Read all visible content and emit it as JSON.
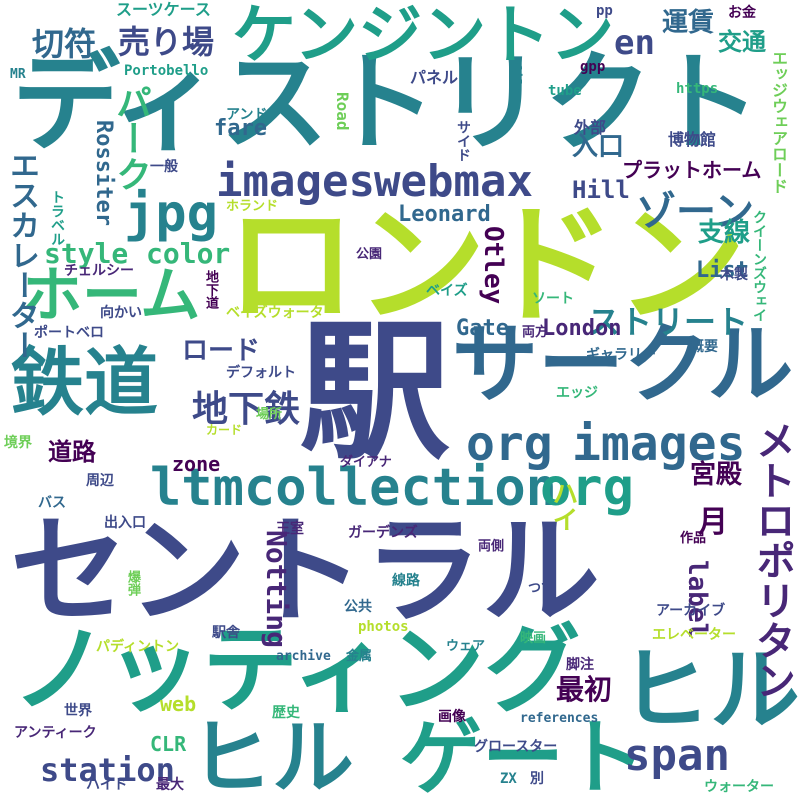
{
  "palette": [
    "#440154",
    "#482777",
    "#3e4a89",
    "#31688e",
    "#26828e",
    "#1f9e89",
    "#35b779",
    "#6ece58",
    "#b5de2b",
    "#fde725"
  ],
  "words": [
    {
      "text": "駅",
      "color": "#3e4a89"
    },
    {
      "text": "ディストリクト",
      "color": "#26828e"
    },
    {
      "text": "ロンドン",
      "color": "#b5de2b"
    },
    {
      "text": "セントラル",
      "color": "#3e4a89"
    },
    {
      "text": "ノッティング",
      "color": "#1f9e89"
    },
    {
      "text": "ヒル",
      "color": "#26828e"
    },
    {
      "text": "ヒル",
      "color": "#26828e"
    },
    {
      "text": "ゲート",
      "color": "#1f9e89"
    },
    {
      "text": "サークル",
      "color": "#31688e"
    },
    {
      "text": "鉄道",
      "color": "#26828e"
    },
    {
      "text": "ケンジントン",
      "color": "#1f9e89"
    },
    {
      "text": "ltmcollection",
      "color": "#26828e"
    },
    {
      "text": "org",
      "color": "#1f9e89"
    },
    {
      "text": "org",
      "color": "#31688e"
    },
    {
      "text": "images",
      "color": "#31688e"
    },
    {
      "text": "images",
      "color": "#3e4a89"
    },
    {
      "text": "webmax",
      "color": "#3e4a89"
    },
    {
      "text": "jpg",
      "color": "#26828e"
    },
    {
      "text": "ホーム",
      "color": "#35b779"
    },
    {
      "text": "span",
      "color": "#3e4a89"
    },
    {
      "text": "station",
      "color": "#3e4a89"
    },
    {
      "text": "地下鉄",
      "color": "#3e4a89"
    },
    {
      "text": "style",
      "color": "#35b779"
    },
    {
      "text": "color",
      "color": "#35b779"
    },
    {
      "text": "ストリート",
      "color": "#26828e"
    },
    {
      "text": "ゾーン",
      "color": "#31688e"
    },
    {
      "text": "メトロポリタン",
      "color": "#482777"
    },
    {
      "text": "パーク",
      "color": "#35b779"
    },
    {
      "text": "エスカレーター",
      "color": "#31688e"
    },
    {
      "text": "Notting",
      "color": "#482777"
    },
    {
      "text": "切符",
      "color": "#31688e"
    },
    {
      "text": "売り場",
      "color": "#3e4a89"
    },
    {
      "text": "en",
      "color": "#3e4a89"
    },
    {
      "text": "運賃",
      "color": "#31688e"
    },
    {
      "text": "交通",
      "color": "#1f9e89"
    },
    {
      "text": "宮殿",
      "color": "#440154"
    },
    {
      "text": "月",
      "color": "#440154"
    },
    {
      "text": "ロード",
      "color": "#3e4a89"
    },
    {
      "text": "最初",
      "color": "#440154"
    },
    {
      "text": "道路",
      "color": "#440154"
    },
    {
      "text": "入口",
      "color": "#31688e"
    },
    {
      "text": "支線",
      "color": "#1f9e89"
    },
    {
      "text": "Rossiter",
      "color": "#31688e"
    },
    {
      "text": "Leonard",
      "color": "#31688e"
    },
    {
      "text": "Hill",
      "color": "#3e4a89"
    },
    {
      "text": "Otley",
      "color": "#440154"
    },
    {
      "text": "List",
      "color": "#31688e"
    },
    {
      "text": "London",
      "color": "#482777"
    },
    {
      "text": "Gate",
      "color": "#31688e"
    },
    {
      "text": "label",
      "color": "#482777"
    },
    {
      "text": "CLR",
      "color": "#35b779"
    },
    {
      "text": "web",
      "color": "#b5de2b"
    },
    {
      "text": "zone",
      "color": "#440154"
    },
    {
      "text": "fare",
      "color": "#31688e"
    },
    {
      "text": "ハイ",
      "color": "#b5de2b"
    },
    {
      "text": "プラットホーム",
      "color": "#440154"
    },
    {
      "text": "スーツケース",
      "color": "#1f9e89"
    },
    {
      "text": "Portobello",
      "color": "#1f9e89"
    },
    {
      "text": "Road",
      "color": "#6ece58"
    },
    {
      "text": "film",
      "color": "#26828e"
    },
    {
      "text": "tube",
      "color": "#1f9e89"
    },
    {
      "text": "gpp",
      "color": "#440154"
    },
    {
      "text": "pp",
      "color": "#3e4a89"
    },
    {
      "text": "https",
      "color": "#35b779"
    },
    {
      "text": "お金",
      "color": "#440154"
    },
    {
      "text": "MR",
      "color": "#26828e"
    },
    {
      "text": "パネル",
      "color": "#3e4a89"
    },
    {
      "text": "アンド",
      "color": "#26828e"
    },
    {
      "text": "外部",
      "color": "#3e4a89"
    },
    {
      "text": "博物館",
      "color": "#3e4a89"
    },
    {
      "text": "サイド",
      "color": "#3e4a89"
    },
    {
      "text": "エッジウェアロード",
      "color": "#6ece58"
    },
    {
      "text": "一般",
      "color": "#3e4a89"
    },
    {
      "text": "トラベル",
      "color": "#1f9e89"
    },
    {
      "text": "ホランド",
      "color": "#b5de2b"
    },
    {
      "text": "クイーンズウェイ",
      "color": "#35b779"
    },
    {
      "text": "公園",
      "color": "#482777"
    },
    {
      "text": "チェルシー",
      "color": "#482777"
    },
    {
      "text": "木製",
      "color": "#3e4a89"
    },
    {
      "text": "地下道",
      "color": "#440154"
    },
    {
      "text": "ベイズ",
      "color": "#1f9e89"
    },
    {
      "text": "ソート",
      "color": "#35b779"
    },
    {
      "text": "ベイズウォーター",
      "color": "#b5de2b"
    },
    {
      "text": "向かい",
      "color": "#3e4a89"
    },
    {
      "text": "ポートベロ",
      "color": "#3e4a89"
    },
    {
      "text": "両方",
      "color": "#482777"
    },
    {
      "text": "ギャラリー",
      "color": "#31688e"
    },
    {
      "text": "概要",
      "color": "#31688e"
    },
    {
      "text": "デフォルト",
      "color": "#3e4a89"
    },
    {
      "text": "エッジ",
      "color": "#35b779"
    },
    {
      "text": "カード",
      "color": "#b5de2b"
    },
    {
      "text": "場所",
      "color": "#6ece58"
    },
    {
      "text": "境界",
      "color": "#6ece58"
    },
    {
      "text": "ダイアナ",
      "color": "#482777"
    },
    {
      "text": "周辺",
      "color": "#3e4a89"
    },
    {
      "text": "バス",
      "color": "#31688e"
    },
    {
      "text": "出入口",
      "color": "#3e4a89"
    },
    {
      "text": "王室",
      "color": "#482777"
    },
    {
      "text": "ガーデンズ",
      "color": "#482777"
    },
    {
      "text": "作品",
      "color": "#440154"
    },
    {
      "text": "両側",
      "color": "#482777"
    },
    {
      "text": "爆弾",
      "color": "#6ece58"
    },
    {
      "text": "線路",
      "color": "#26828e"
    },
    {
      "text": "つて",
      "color": "#3e4a89"
    },
    {
      "text": "公共",
      "color": "#31688e"
    },
    {
      "text": "アーカイブ",
      "color": "#3e4a89"
    },
    {
      "text": "photos",
      "color": "#b5de2b"
    },
    {
      "text": "駅舎",
      "color": "#3e4a89"
    },
    {
      "text": "パディントン",
      "color": "#b5de2b"
    },
    {
      "text": "エレベーター",
      "color": "#b5de2b"
    },
    {
      "text": "映画",
      "color": "#35b779"
    },
    {
      "text": "ウェア",
      "color": "#26828e"
    },
    {
      "text": "archive",
      "color": "#31688e"
    },
    {
      "text": "金属",
      "color": "#26828e"
    },
    {
      "text": "脚注",
      "color": "#482777"
    },
    {
      "text": "世界",
      "color": "#3e4a89"
    },
    {
      "text": "歴史",
      "color": "#35b779"
    },
    {
      "text": "画像",
      "color": "#440154"
    },
    {
      "text": "references",
      "color": "#31688e"
    },
    {
      "text": "アンティーク",
      "color": "#482777"
    },
    {
      "text": "グロースター",
      "color": "#3e4a89"
    },
    {
      "text": "ハイド",
      "color": "#3e4a89"
    },
    {
      "text": "最大",
      "color": "#482777"
    },
    {
      "text": "ZX",
      "color": "#26828e"
    },
    {
      "text": "別",
      "color": "#3e4a89"
    },
    {
      "text": "ウォーター",
      "color": "#35b779"
    }
  ]
}
